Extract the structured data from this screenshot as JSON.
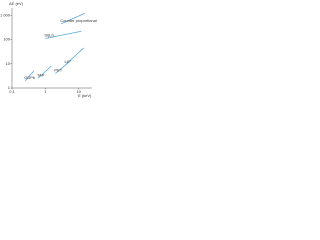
{
  "chart_data": {
    "type": "line",
    "x_label": "E (keV)",
    "y_label": "ΔE (eV)",
    "xscale": "log",
    "yscale": "log",
    "xlim": [
      0.1,
      25
    ],
    "ylim": [
      1,
      2000
    ],
    "xticks": [
      0.1,
      1,
      10
    ],
    "yticks": [
      1,
      10,
      100,
      {
        "value": 1000,
        "label": "1 000"
      }
    ],
    "series": [
      {
        "name": "Counter proportional",
        "color": "#5aa9d8",
        "x": [
          3,
          15
        ],
        "values": [
          450,
          1200
        ]
      },
      {
        "name": "Si(Li)",
        "color": "#5aa9d8",
        "x": [
          1,
          12
        ],
        "values": [
          110,
          220
        ]
      },
      {
        "name": "LiF",
        "color": "#5aa9d8",
        "x": [
          4,
          14
        ],
        "values": [
          9,
          45
        ]
      },
      {
        "name": "PET",
        "color": "#5aa9d8",
        "x": [
          2,
          6
        ],
        "values": [
          4,
          14
        ]
      },
      {
        "name": "TAP",
        "color": "#5aa9d8",
        "x": [
          0.6,
          1.5
        ],
        "values": [
          2.5,
          8
        ]
      },
      {
        "name": "ODPb",
        "color": "#5aa9d8",
        "x": [
          0.25,
          0.45
        ],
        "values": [
          2,
          5
        ]
      }
    ]
  }
}
